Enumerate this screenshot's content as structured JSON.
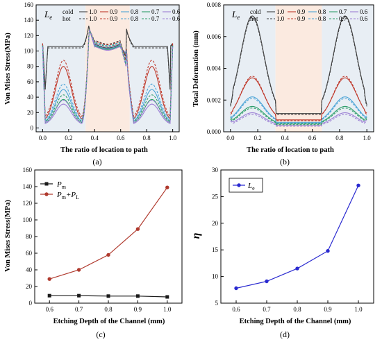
{
  "chart_data": [
    {
      "id": "a",
      "type": "line",
      "panel_label": "(a)",
      "xlabel": "The ratio of location to path",
      "ylabel": "Von Mises Stress(MPa)",
      "xlim": [
        -0.05,
        1.05
      ],
      "ylim": [
        -5,
        160
      ],
      "xticks": [
        0.0,
        0.2,
        0.4,
        0.6,
        0.8,
        1.0
      ],
      "xtick_labels": [
        "0.0",
        "0.2",
        "0.4",
        "0.6",
        "0.8",
        "1.0"
      ],
      "yticks": [
        0,
        20,
        40,
        60,
        80,
        100,
        120,
        140,
        160
      ],
      "ytick_labels": [
        "0",
        "20",
        "40",
        "60",
        "80",
        "100",
        "120",
        "140",
        "160"
      ],
      "background_regions": [
        {
          "x": [
            -0.05,
            0.33
          ],
          "color": "#e8eef4"
        },
        {
          "x": [
            0.33,
            0.67
          ],
          "color": "#fbeae0"
        },
        {
          "x": [
            0.67,
            1.05
          ],
          "color": "#e8eef4"
        }
      ],
      "legend": {
        "symbol": "Le",
        "rows": [
          "cold",
          "hot"
        ],
        "entries": [
          "1.0",
          "0.9",
          "0.8",
          "0.7",
          "0.6"
        ],
        "colors": [
          "#404040",
          "#c0392b",
          "#4aa3d6",
          "#2e9e6a",
          "#9b7fd4"
        ],
        "placement": "top"
      },
      "series": [
        {
          "name": "cold 1.0",
          "color": "#404040",
          "dash": false,
          "peak": 106,
          "mid": 107,
          "edge_dip": 93,
          "base": 0,
          "end": 110,
          "kind": "flat"
        },
        {
          "name": "cold 0.9",
          "color": "#c0392b",
          "dash": false,
          "peak": 80,
          "mid": 106,
          "edge_dip": 95,
          "base": 7,
          "end": 110,
          "kind": "dome"
        },
        {
          "name": "cold 0.8",
          "color": "#4aa3d6",
          "dash": false,
          "peak": 50,
          "mid": 106,
          "edge_dip": 96,
          "base": 6,
          "end": 108,
          "kind": "dome"
        },
        {
          "name": "cold 0.7",
          "color": "#2e9e6a",
          "dash": false,
          "peak": 37,
          "mid": 105,
          "edge_dip": 97,
          "base": 5,
          "end": 107,
          "kind": "dome"
        },
        {
          "name": "cold 0.6",
          "color": "#9b7fd4",
          "dash": false,
          "peak": 31,
          "mid": 104,
          "edge_dip": 98,
          "base": 4,
          "end": 106,
          "kind": "dome"
        },
        {
          "name": "hot 1.0",
          "color": "#404040",
          "dash": true,
          "peak": 104,
          "mid": 112,
          "edge_dip": 88,
          "base": 0,
          "end": 109,
          "kind": "flat"
        },
        {
          "name": "hot 0.9",
          "color": "#c0392b",
          "dash": true,
          "peak": 88,
          "mid": 111,
          "edge_dip": 86,
          "base": 10,
          "end": 109,
          "kind": "dome"
        },
        {
          "name": "hot 0.8",
          "color": "#4aa3d6",
          "dash": true,
          "peak": 57,
          "mid": 110,
          "edge_dip": 84,
          "base": 8,
          "end": 107,
          "kind": "dome"
        },
        {
          "name": "hot 0.7",
          "color": "#2e9e6a",
          "dash": true,
          "peak": 43,
          "mid": 109,
          "edge_dip": 82,
          "base": 6,
          "end": 106,
          "kind": "dome"
        },
        {
          "name": "hot 0.6",
          "color": "#9b7fd4",
          "dash": true,
          "peak": 36,
          "mid": 108,
          "edge_dip": 80,
          "base": 5,
          "end": 105,
          "kind": "dome"
        }
      ]
    },
    {
      "id": "b",
      "type": "line",
      "panel_label": "(b)",
      "xlabel": "The ratio of location to path",
      "ylabel": "Total Deformation (mm)",
      "xlim": [
        -0.05,
        1.05
      ],
      "ylim": [
        0.0,
        0.008
      ],
      "xticks": [
        0.0,
        0.2,
        0.4,
        0.6,
        0.8,
        1.0
      ],
      "xtick_labels": [
        "0.0",
        "0.2",
        "0.4",
        "0.6",
        "0.8",
        "1.0"
      ],
      "yticks": [
        0.0,
        0.002,
        0.004,
        0.006,
        0.008
      ],
      "ytick_labels": [
        "0.000",
        "0.002",
        "0.004",
        "0.006",
        "0.008"
      ],
      "background_regions": [
        {
          "x": [
            -0.05,
            0.33
          ],
          "color": "#e8eef4"
        },
        {
          "x": [
            0.33,
            0.67
          ],
          "color": "#fbeae0"
        },
        {
          "x": [
            0.67,
            1.05
          ],
          "color": "#e8eef4"
        }
      ],
      "legend": {
        "symbol": "Le",
        "rows": [
          "cold",
          "hot"
        ],
        "entries": [
          "1.0",
          "0.9",
          "0.8",
          "0.7",
          "0.6"
        ],
        "colors": [
          "#404040",
          "#c0392b",
          "#4aa3d6",
          "#2e9e6a",
          "#9b7fd4"
        ],
        "placement": "top"
      },
      "series": [
        {
          "name": "cold 1.0",
          "color": "#404040",
          "dash": false,
          "peak": 0.0073,
          "mid": 0.00115,
          "end": 0.0017
        },
        {
          "name": "cold 0.9",
          "color": "#c0392b",
          "dash": false,
          "peak": 0.0034,
          "mid": 0.00075,
          "end": 0.0012
        },
        {
          "name": "cold 0.8",
          "color": "#4aa3d6",
          "dash": false,
          "peak": 0.0022,
          "mid": 0.0006,
          "end": 0.001
        },
        {
          "name": "cold 0.7",
          "color": "#2e9e6a",
          "dash": false,
          "peak": 0.0016,
          "mid": 0.0005,
          "end": 0.0009
        },
        {
          "name": "cold 0.6",
          "color": "#9b7fd4",
          "dash": false,
          "peak": 0.0012,
          "mid": 0.00042,
          "end": 0.0008
        },
        {
          "name": "hot 1.0",
          "color": "#404040",
          "dash": true,
          "peak": 0.0072,
          "mid": 0.0011,
          "end": 0.0016
        },
        {
          "name": "hot 0.9",
          "color": "#c0392b",
          "dash": true,
          "peak": 0.0035,
          "mid": 0.0007,
          "end": 0.0011
        },
        {
          "name": "hot 0.8",
          "color": "#4aa3d6",
          "dash": true,
          "peak": 0.0021,
          "mid": 0.00055,
          "end": 0.0009
        },
        {
          "name": "hot 0.7",
          "color": "#2e9e6a",
          "dash": true,
          "peak": 0.0015,
          "mid": 0.00045,
          "end": 0.0008
        },
        {
          "name": "hot 0.6",
          "color": "#9b7fd4",
          "dash": true,
          "peak": 0.0011,
          "mid": 0.00035,
          "end": 0.0007
        }
      ]
    },
    {
      "id": "c",
      "type": "line",
      "panel_label": "(c)",
      "xlabel": "Etching Depth of the Channel (mm)",
      "ylabel": "Von Mises Stress(MPa)",
      "xlim": [
        0.55,
        1.05
      ],
      "ylim": [
        0,
        160
      ],
      "xticks": [
        0.6,
        0.7,
        0.8,
        0.9,
        1.0
      ],
      "xtick_labels": [
        "0.6",
        "0.7",
        "0.8",
        "0.9",
        "1.0"
      ],
      "yticks": [
        0,
        20,
        40,
        60,
        80,
        100,
        120,
        140,
        160
      ],
      "ytick_labels": [
        "0",
        "20",
        "40",
        "60",
        "80",
        "100",
        "120",
        "140",
        "160"
      ],
      "x": [
        0.6,
        0.7,
        0.8,
        0.9,
        1.0
      ],
      "legend_placement": "top-left",
      "series": [
        {
          "name": "Pm",
          "name_base": "P",
          "name_sub": "m",
          "color": "#1a1a1a",
          "marker": "square",
          "values": [
            9,
            9,
            8.5,
            8.5,
            7.5
          ]
        },
        {
          "name": "Pm+PL",
          "name_base": "P",
          "name_sub": "m",
          "name_plus": "+P",
          "name_sub2": "L",
          "color": "#b03a2e",
          "marker": "circle",
          "values": [
            29,
            40,
            58,
            89,
            139
          ]
        }
      ]
    },
    {
      "id": "d",
      "type": "line",
      "panel_label": "(d)",
      "xlabel": "Etching Depth of the Channel (mm)",
      "ylabel": "η",
      "xlim": [
        0.55,
        1.05
      ],
      "ylim": [
        5,
        30
      ],
      "xticks": [
        0.6,
        0.7,
        0.8,
        0.9,
        1.0
      ],
      "xtick_labels": [
        "0.6",
        "0.7",
        "0.8",
        "0.9",
        "1.0"
      ],
      "yticks": [
        5,
        10,
        15,
        20,
        25,
        30
      ],
      "ytick_labels": [
        "5",
        "10",
        "15",
        "20",
        "25",
        "30"
      ],
      "x": [
        0.6,
        0.7,
        0.8,
        0.9,
        1.0
      ],
      "legend_placement": "top-left",
      "series": [
        {
          "name": "Le",
          "name_base": "L",
          "name_sub": "e",
          "color": "#2a2ad0",
          "marker": "circle",
          "values": [
            7.8,
            9.1,
            11.5,
            14.8,
            27.1
          ]
        }
      ]
    }
  ]
}
